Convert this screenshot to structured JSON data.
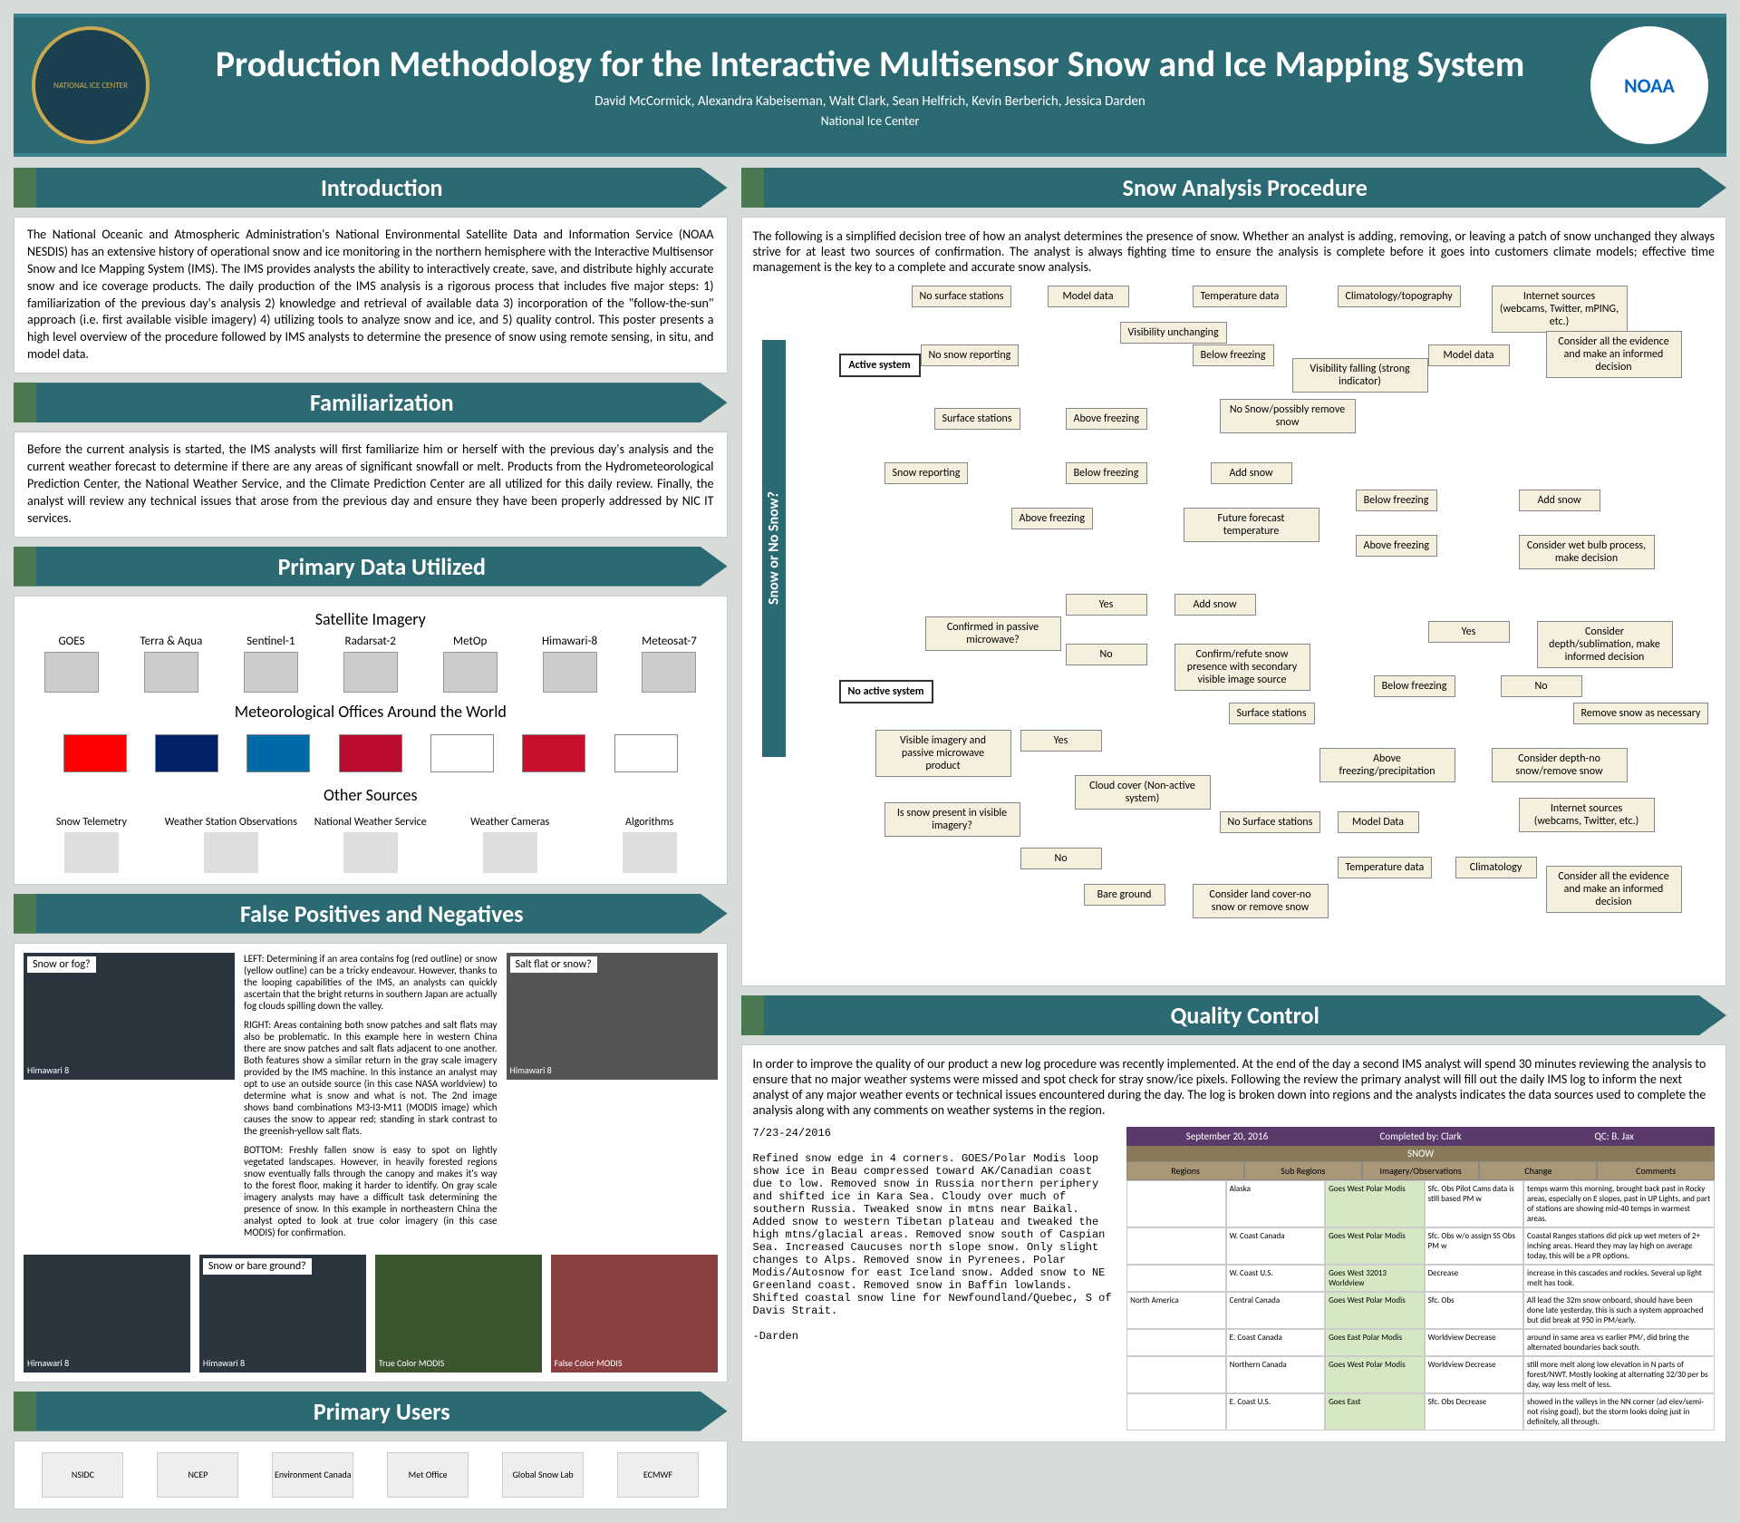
{
  "header": {
    "title": "Production Methodology for the Interactive Multisensor Snow and Ice Mapping System",
    "authors": "David McCormick, Alexandra Kabeiseman, Walt Clark, Sean Helfrich, Kevin Berberich, Jessica Darden",
    "org": "National Ice Center",
    "logo_left": "NATIONAL ICE CENTER",
    "logo_right": "NOAA"
  },
  "sections": {
    "intro": {
      "title": "Introduction",
      "text": "The National Oceanic and Atmospheric Administration's National Environmental Satellite Data and Information Service (NOAA NESDIS) has an extensive history of operational snow and ice monitoring in the northern hemisphere with the Interactive Multisensor Snow and Ice Mapping System (IMS). The IMS provides analysts the ability to interactively create, save, and distribute highly accurate snow and ice coverage products. The daily production of the IMS analysis is a rigorous process that includes five major steps: 1) familiarization of the previous day's analysis 2) knowledge and retrieval of available data 3) incorporation of the \"follow-the-sun\" approach (i.e. first available visible imagery) 4) utilizing tools to analyze snow and ice, and 5) quality control. This poster presents a high level overview of the procedure followed by IMS analysts to determine the presence of snow using remote sensing, in situ, and model data."
    },
    "familiar": {
      "title": "Familiarization",
      "text": "Before the current analysis is started, the IMS analysts will first familiarize him or herself with the previous day's analysis and the current weather forecast to determine if there are any areas of significant snowfall or melt. Products from the Hydrometeorological Prediction Center, the National Weather Service, and the Climate Prediction Center are all utilized for this daily review. Finally, the analyst will review any technical issues that arose from the previous day and ensure they have been properly addressed by NIC IT services."
    },
    "data": {
      "title": "Primary Data Utilized",
      "sat_heading": "Satellite Imagery",
      "sats": [
        "GOES",
        "Terra & Aqua",
        "Sentinel-1",
        "Radarsat-2",
        "MetOp",
        "Himawari-8",
        "Meteosat-7"
      ],
      "met_heading": "Meteorological Offices Around the World",
      "flags": [
        {
          "name": "canada",
          "colors": "#ff0000"
        },
        {
          "name": "uk",
          "colors": "#012169"
        },
        {
          "name": "sweden",
          "colors": "#006aa7"
        },
        {
          "name": "norway",
          "colors": "#ba0c2f"
        },
        {
          "name": "finland",
          "colors": "#ffffff"
        },
        {
          "name": "denmark",
          "colors": "#c8102e"
        },
        {
          "name": "russia",
          "colors": "#ffffff"
        }
      ],
      "other_heading": "Other Sources",
      "others": [
        "Snow Telemetry",
        "Weather Station Observations",
        "National Weather Service",
        "Weather Cameras",
        "Algorithms"
      ]
    },
    "false": {
      "title": "False Positives and Negatives",
      "labels": {
        "snowfog": "Snow or fog?",
        "saltflat": "Salt flat or snow?",
        "bareground": "Snow or bare ground?"
      },
      "caps": {
        "h8": "Himawari 8",
        "tcm": "True Color MODIS",
        "fcm": "False Color MODIS"
      },
      "left": "LEFT: Determining if an area contains fog (red outline) or snow (yellow outline) can be a tricky endeavour. However, thanks to the looping capabilities of the IMS, an analysts can quickly ascertain that the bright returns in southern Japan are actually fog clouds spilling down the valley.",
      "right": "RIGHT: Areas containing both snow patches and salt flats may also be problematic. In this example here in western China there are snow patches and salt flats adjacent to one another. Both features show a similar return in the gray scale imagery provided by the IMS machine. In this instance an analyst may opt to use an outside source (in this case NASA worldview) to determine what is snow and what is not. The 2nd image shows band combinations M3-I3-M11 (MODIS image) which causes the snow to appear red; standing in stark contrast to the greenish-yellow salt flats.",
      "bottom": "BOTTOM: Freshly fallen snow is easy to spot on lightly vegetated landscapes. However, in heavily forested regions snow eventually falls through the canopy and makes it's way to the forest floor, making it harder to identify. On gray scale imagery analysts may have a difficult task determining the presence of snow. In this example in northeastern China the analyst opted to look at true color imagery (in this case MODIS) for confirmation."
    },
    "users": {
      "title": "Primary Users",
      "list": [
        "NSIDC",
        "NCEP",
        "Environment Canada",
        "Met Office",
        "Global Snow Lab",
        "ECMWF"
      ]
    },
    "snow": {
      "title": "Snow Analysis Procedure",
      "intro": "The following is a simplified decision tree of how an analyst determines the presence of snow. Whether an analyst is adding, removing, or leaving a patch of snow unchanged they always strive for at least two sources of confirmation. The analyst is always fighting time to ensure the analysis is complete before it goes into customers climate models; effective time management is the key to a complete and accurate snow analysis.",
      "vbar": "Snow or No Snow?",
      "nodes": {
        "n1": "Active system",
        "n2": "No surface stations",
        "n3": "Model data",
        "n4": "Temperature data",
        "n5": "Climatology/topography",
        "n6": "Internet sources (webcams, Twitter, mPING, etc.)",
        "n7": "No snow reporting",
        "n8": "Visibility unchanging",
        "n9": "Below freezing",
        "n10": "Visibility falling (strong indicator)",
        "n11": "Model data",
        "n12": "Consider all the evidence and make an informed decision",
        "n13": "Surface stations",
        "n14": "Above freezing",
        "n15": "No Snow/possibly remove snow",
        "n16": "Snow reporting",
        "n17": "Below freezing",
        "n18": "Add snow",
        "n19": "Above freezing",
        "n20": "Future forecast temperature",
        "n21": "Below freezing",
        "n22": "Add snow",
        "n23": "Above freezing",
        "n24": "Consider wet bulb process, make decision",
        "n25": "No active system",
        "n26": "Confirmed in passive microwave?",
        "n27": "Yes",
        "n28": "Add snow",
        "n29": "No",
        "n30": "Confirm/refute snow presence with secondary visible image source",
        "n31": "Yes",
        "n32": "Consider depth/sublimation, make informed decision",
        "n33": "Visible imagery and passive microwave product",
        "n34": "Yes",
        "n35": "Surface stations",
        "n36": "Below freezing",
        "n37": "No",
        "n38": "Remove snow as necessary",
        "n39": "Is snow present in visible imagery?",
        "n40": "Cloud cover (Non-active system)",
        "n41": "Above freezing/precipitation",
        "n42": "Consider depth-no snow/remove snow",
        "n43": "No",
        "n44": "Bare ground",
        "n45": "No Surface stations",
        "n46": "Model Data",
        "n47": "Internet sources (webcams, Twitter, etc.)",
        "n48": "Consider land cover-no snow or remove snow",
        "n49": "Temperature data",
        "n50": "Climatology",
        "n51": "Consider all the evidence and make an informed decision"
      }
    },
    "qc": {
      "title": "Quality Control",
      "intro": "In order to improve the quality of our product a new log procedure was recently implemented. At the end of the day a second IMS analyst will spend 30 minutes reviewing the analysis to ensure that no major weather systems were missed and spot check for stray snow/ice pixels. Following the review the primary analyst will fill out the daily IMS log to inform the next analyst of any major weather events or technical issues encountered during the day. The log is broken down into regions and the analysts indicates the data sources used to complete the analysis along with any comments on weather systems in the region.",
      "log": "7/23-24/2016\n\nRefined snow edge in 4 corners. GOES/Polar Modis loop show ice in Beau compressed toward AK/Canadian coast due to low. Removed snow in Russia northern periphery and shifted ice in Kara Sea. Cloudy over much of southern Russia. Tweaked snow in mtns near Baikal. Added snow to western Tibetan plateau and tweaked the high mtns/glacial areas. Removed snow south of Caspian Sea. Increased Caucuses north slope snow. Only slight changes to Alps. Removed snow in Pyrenees. Polar Modis/Autosnow for east Iceland snow. Added snow to NE Greenland coast. Removed snow in Baffin lowlands. Shifted coastal snow line for Newfoundland/Quebec, S of Davis Strait.\n\n-Darden",
      "table_header": {
        "date": "September 20, 2016",
        "by": "Completed by: Clark",
        "qc": "QC: B. Jax",
        "snow": "SNOW"
      },
      "cols": [
        "Regions",
        "Sub Regions",
        "Imagery/Observations",
        "Change",
        "Comments"
      ],
      "region": "North America",
      "rows": [
        {
          "sub": "Alaska",
          "img": "Goes West    Polar Modis",
          "chg": "Sfc. Obs Pilot Cams   data is still based PM w",
          "com": "temps warm this morning, brought back past in Rocky areas, especially on E slopes, past in UP Lights, and part of stations are showing mid-40 temps in warmest areas."
        },
        {
          "sub": "W. Coast Canada",
          "img": "Goes West    Polar Modis",
          "chg": "Sfc. Obs    w/o assign SS Obs PM w",
          "com": "Coastal Ranges stations did pick up wet meters of 2+ inching areas. Heard they may lay high on average today, this will be a PR options."
        },
        {
          "sub": "W. Coast U.S.",
          "img": "Goes West    32013 Worldview",
          "chg": "Decrease",
          "com": "increase in this cascades and rockies. Several up light melt has took."
        },
        {
          "sub": "Central Canada",
          "img": "Goes West    Polar Modis",
          "chg": "Sfc. Obs",
          "com": "All lead the 32m snow onboard, should have been done late yesterday, this is such a system approached but did break at 950 in PM/early."
        },
        {
          "sub": "E. Coast Canada",
          "img": "Goes East    Polar Modis",
          "chg": "Worldview    Decrease",
          "com": "around in same area vs earlier PM/, did bring the alternated boundaries back south."
        },
        {
          "sub": "Northern Canada",
          "img": "Goes West    Polar Modis",
          "chg": "Worldview    Decrease",
          "com": "still more melt along low elevation in N parts of forest/NWT. Mostly looking at alternating 32/30 per bs day, way less melt of less."
        },
        {
          "sub": "E. Coast U.S.",
          "img": "Goes East",
          "chg": "Sfc. Obs    Decrease",
          "com": "showed in the valleys in the NN corner (ad elev/semi-not rising goad), but the storm looks doing just in definitely, all through."
        }
      ]
    }
  },
  "colors": {
    "header_bg": "#2b6973",
    "accent": "#4a7850",
    "node_bg": "#f5f0dd"
  }
}
